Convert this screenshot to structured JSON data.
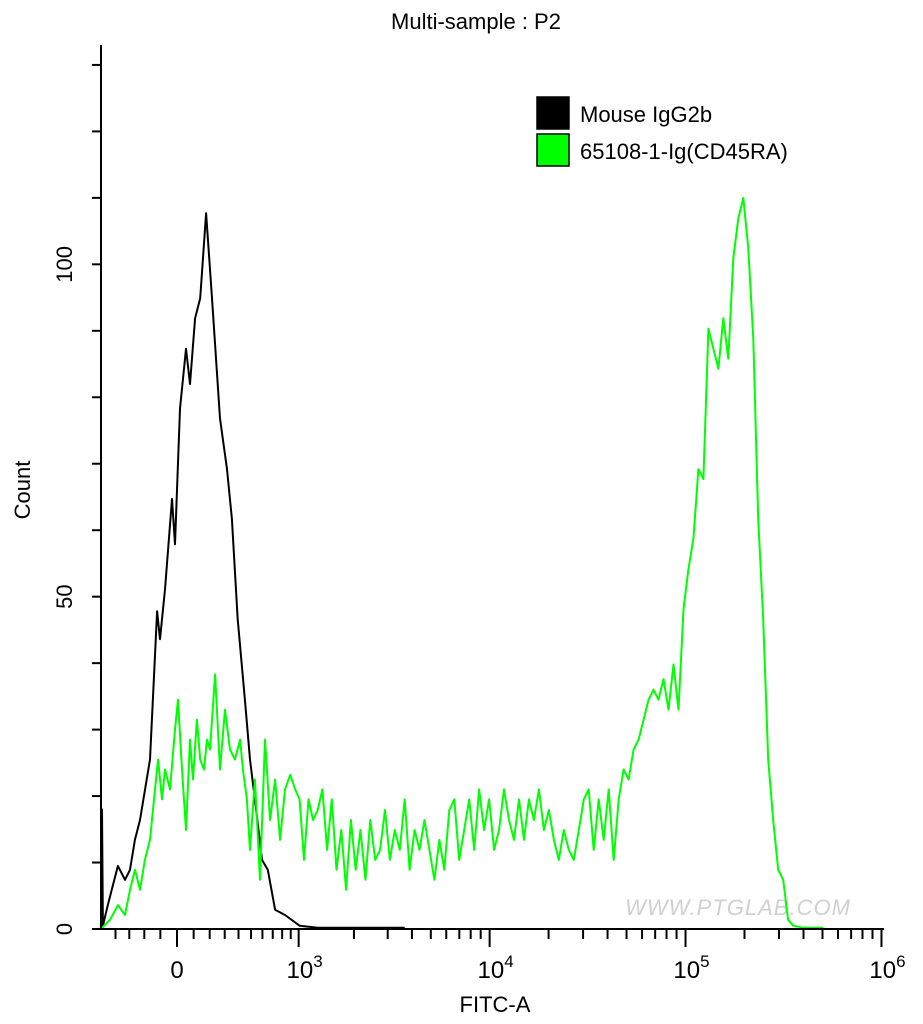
{
  "chart_data": {
    "type": "line",
    "title": "Multi-sample : P2",
    "xlabel": "FITC-A",
    "ylabel": "Count",
    "x_scale": "biexponential",
    "xlim": [
      -517,
      1000000
    ],
    "ylim": [
      0,
      133
    ],
    "x_ticks": [
      {
        "value": 0,
        "base": "0",
        "exp": ""
      },
      {
        "value": 1000,
        "base": "10",
        "exp": "3"
      },
      {
        "value": 10000,
        "base": "10",
        "exp": "4"
      },
      {
        "value": 100000,
        "base": "10",
        "exp": "5"
      },
      {
        "value": 1000000,
        "base": "10",
        "exp": "6"
      }
    ],
    "y_ticks": [
      {
        "value": 0,
        "label": "0"
      },
      {
        "value": 50,
        "label": "50"
      },
      {
        "value": 100,
        "label": "100"
      }
    ],
    "grid": false,
    "legend_placement": "top-right",
    "watermark": "WWW.PTGLAB.COM",
    "series": [
      {
        "name": "Mouse IgG2b",
        "color": "#000000",
        "points": [
          [
            -517,
            0
          ],
          [
            -508,
            18
          ],
          [
            -500,
            0.5
          ],
          [
            -460,
            3.6
          ],
          [
            -382,
            9.5
          ],
          [
            -330,
            7.4
          ],
          [
            -295,
            8.9
          ],
          [
            -262,
            13.4
          ],
          [
            -228,
            16.4
          ],
          [
            -164,
            25.5
          ],
          [
            -120,
            47.8
          ],
          [
            -102,
            43.6
          ],
          [
            -72,
            51.1
          ],
          [
            -30,
            64.7
          ],
          [
            -12,
            57.9
          ],
          [
            18,
            78.3
          ],
          [
            54,
            87.3
          ],
          [
            78,
            82
          ],
          [
            109,
            91.9
          ],
          [
            140,
            94.9
          ],
          [
            177,
            107.7
          ],
          [
            215,
            94.9
          ],
          [
            268,
            76.8
          ],
          [
            316,
            69.2
          ],
          [
            351,
            61.7
          ],
          [
            394,
            46.6
          ],
          [
            450,
            34.5
          ],
          [
            491,
            25.5
          ],
          [
            533,
            19.5
          ],
          [
            596,
            10.4
          ],
          [
            651,
            8.9
          ],
          [
            724,
            2.9
          ],
          [
            832,
            2.1
          ],
          [
            1012,
            0.5
          ],
          [
            1279,
            0.2
          ],
          [
            1818,
            0.2
          ],
          [
            2583,
            0.2
          ],
          [
            3671,
            0.2
          ]
        ]
      },
      {
        "name": "65108-1-Ig(CD45RA)",
        "color": "#00ff00",
        "points": [
          [
            -517,
            0
          ],
          [
            -442,
            1.4
          ],
          [
            -381,
            3.6
          ],
          [
            -330,
            2.1
          ],
          [
            -295,
            5.9
          ],
          [
            -261,
            8.9
          ],
          [
            -228,
            5.9
          ],
          [
            -196,
            10.4
          ],
          [
            -164,
            13.4
          ],
          [
            -133,
            21
          ],
          [
            -114,
            25.5
          ],
          [
            -90,
            19.5
          ],
          [
            -72,
            24
          ],
          [
            -42,
            21
          ],
          [
            -12,
            30
          ],
          [
            6,
            34.5
          ],
          [
            30,
            24
          ],
          [
            54,
            14.9
          ],
          [
            78,
            28.5
          ],
          [
            96,
            22.5
          ],
          [
            120,
            31.5
          ],
          [
            140,
            25.5
          ],
          [
            164,
            24
          ],
          [
            183,
            28.5
          ],
          [
            202,
            27
          ],
          [
            235,
            38.3
          ],
          [
            268,
            24
          ],
          [
            302,
            33
          ],
          [
            337,
            27
          ],
          [
            373,
            25.5
          ],
          [
            412,
            28.5
          ],
          [
            434,
            24
          ],
          [
            466,
            19.5
          ],
          [
            491,
            11.9
          ],
          [
            533,
            22.5
          ],
          [
            578,
            7.4
          ],
          [
            624,
            28.5
          ],
          [
            673,
            16.4
          ],
          [
            724,
            22.5
          ],
          [
            777,
            13.4
          ],
          [
            832,
            21
          ],
          [
            893,
            23.2
          ],
          [
            955,
            21
          ],
          [
            1012,
            19.5
          ],
          [
            1073,
            10.4
          ],
          [
            1137,
            19.5
          ],
          [
            1206,
            16.4
          ],
          [
            1279,
            17.9
          ],
          [
            1356,
            21
          ],
          [
            1438,
            11.9
          ],
          [
            1525,
            19.5
          ],
          [
            1617,
            8.9
          ],
          [
            1714,
            14.9
          ],
          [
            1818,
            5.9
          ],
          [
            1928,
            16.4
          ],
          [
            2043,
            8.9
          ],
          [
            2166,
            14.9
          ],
          [
            2297,
            7.4
          ],
          [
            2436,
            16.4
          ],
          [
            2583,
            10.4
          ],
          [
            2739,
            11.9
          ],
          [
            2904,
            17.9
          ],
          [
            3079,
            10.4
          ],
          [
            3265,
            14.9
          ],
          [
            3462,
            11.9
          ],
          [
            3671,
            19.5
          ],
          [
            3892,
            8.9
          ],
          [
            4127,
            14.9
          ],
          [
            4376,
            11.9
          ],
          [
            4640,
            16.4
          ],
          [
            4920,
            11.9
          ],
          [
            5217,
            7.4
          ],
          [
            5532,
            13.4
          ],
          [
            5865,
            8.9
          ],
          [
            6219,
            17.9
          ],
          [
            6594,
            19.5
          ],
          [
            6992,
            10.4
          ],
          [
            7414,
            14.9
          ],
          [
            7861,
            19.5
          ],
          [
            8335,
            11.9
          ],
          [
            8838,
            21
          ],
          [
            9371,
            14.9
          ],
          [
            9936,
            19.5
          ],
          [
            10536,
            11.9
          ],
          [
            11171,
            14.9
          ],
          [
            11846,
            21
          ],
          [
            12560,
            16.4
          ],
          [
            13318,
            13.4
          ],
          [
            14121,
            19.5
          ],
          [
            14974,
            13.4
          ],
          [
            15876,
            19.5
          ],
          [
            16835,
            16.4
          ],
          [
            17850,
            21
          ],
          [
            18928,
            14.9
          ],
          [
            20069,
            17.9
          ],
          [
            21281,
            13.4
          ],
          [
            22564,
            10.4
          ],
          [
            23926,
            14.9
          ],
          [
            25369,
            11.9
          ],
          [
            26900,
            10.4
          ],
          [
            28522,
            14.9
          ],
          [
            30244,
            19.5
          ],
          [
            32067,
            21
          ],
          [
            34003,
            11.9
          ],
          [
            36054,
            19.5
          ],
          [
            38230,
            13.4
          ],
          [
            40535,
            21
          ],
          [
            42982,
            10.4
          ],
          [
            45574,
            19.5
          ],
          [
            48325,
            24
          ],
          [
            51239,
            22.5
          ],
          [
            54332,
            27
          ],
          [
            57608,
            28.5
          ],
          [
            61086,
            31.5
          ],
          [
            64770,
            34.5
          ],
          [
            68679,
            36
          ],
          [
            72820,
            34.5
          ],
          [
            77216,
            37.6
          ],
          [
            81872,
            33
          ],
          [
            86814,
            39.8
          ],
          [
            92049,
            33
          ],
          [
            97605,
            48.1
          ],
          [
            103492,
            54.1
          ],
          [
            109737,
            58.7
          ],
          [
            116357,
            69.2
          ],
          [
            123378,
            67.7
          ],
          [
            130820,
            90.3
          ],
          [
            138714,
            87.3
          ],
          [
            147081,
            84.3
          ],
          [
            155956,
            91.9
          ],
          [
            165362,
            85.8
          ],
          [
            175342,
            100.9
          ],
          [
            185916,
            106.9
          ],
          [
            197137,
            110
          ],
          [
            209024,
            102.4
          ],
          [
            221641,
            88.8
          ],
          [
            234994,
            61.7
          ],
          [
            249192,
            46.6
          ],
          [
            264172,
            25.5
          ],
          [
            280167,
            16.4
          ],
          [
            297054,
            8.9
          ],
          [
            314992,
            7.4
          ],
          [
            333990,
            1.4
          ],
          [
            354146,
            0.5
          ],
          [
            398166,
            0.2
          ],
          [
            503302,
            0.2
          ]
        ]
      }
    ]
  }
}
